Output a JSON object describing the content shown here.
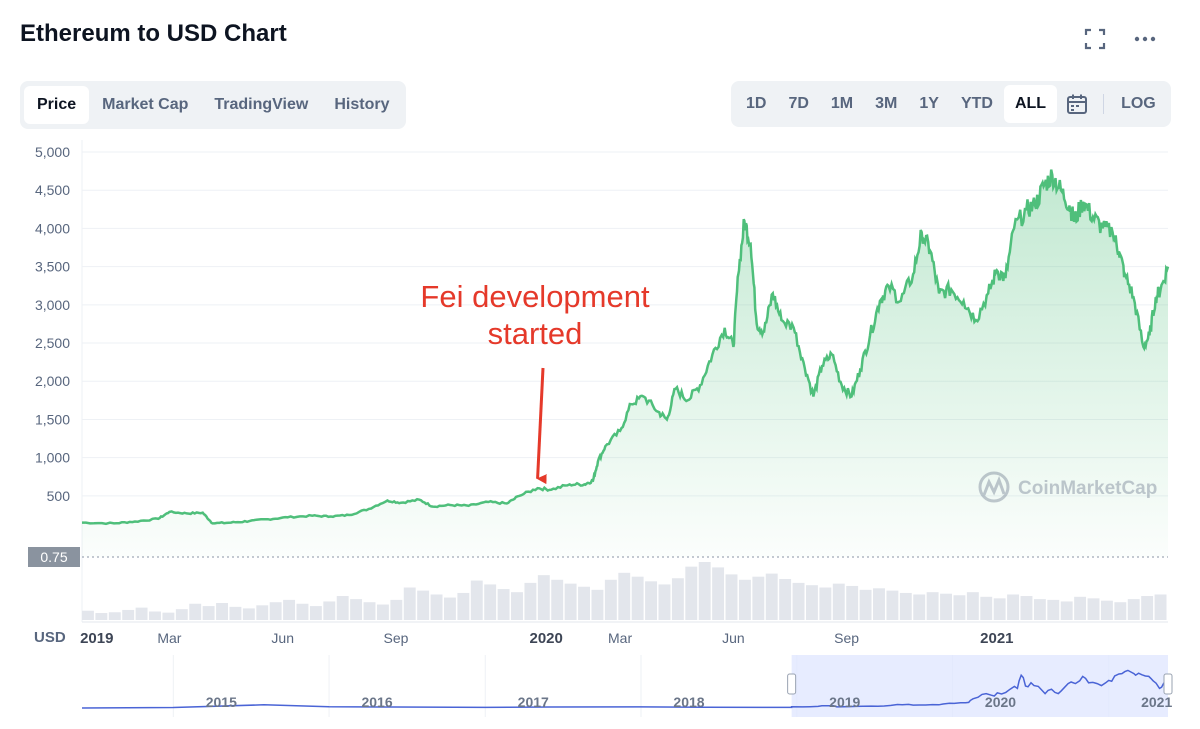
{
  "header": {
    "title": "Ethereum to USD Chart",
    "fullscreen_icon": "fullscreen-icon",
    "more_icon": "more-dots-icon"
  },
  "tabs": [
    {
      "label": "Price",
      "active": true
    },
    {
      "label": "Market Cap",
      "active": false
    },
    {
      "label": "TradingView",
      "active": false
    },
    {
      "label": "History",
      "active": false
    }
  ],
  "ranges": [
    {
      "label": "1D",
      "active": false
    },
    {
      "label": "7D",
      "active": false
    },
    {
      "label": "1M",
      "active": false
    },
    {
      "label": "3M",
      "active": false
    },
    {
      "label": "1Y",
      "active": false
    },
    {
      "label": "YTD",
      "active": false
    },
    {
      "label": "ALL",
      "active": true
    }
  ],
  "calendar_icon": "calendar-icon",
  "log_label": "LOG",
  "chart_data": {
    "type": "area",
    "title": "",
    "xlabel": "",
    "ylabel": "",
    "y_ticks": [
      5000,
      4500,
      4000,
      3500,
      3000,
      2500,
      2000,
      1500,
      1000,
      500
    ],
    "y_tick_labels": [
      "5,000",
      "4,500",
      "4,000",
      "3,500",
      "3,000",
      "2,500",
      "2,000",
      "1,500",
      "1,000",
      "500"
    ],
    "ylim": [
      -300,
      5000
    ],
    "x_ticks": [
      {
        "label": "2019",
        "date": "2019-01-01",
        "bold": true
      },
      {
        "label": "Mar",
        "date": "2019-03-01",
        "bold": false
      },
      {
        "label": "Jun",
        "date": "2019-06-01",
        "bold": false
      },
      {
        "label": "Sep",
        "date": "2019-09-01",
        "bold": false
      },
      {
        "label": "2020",
        "date": "2020-01-01",
        "bold": true
      },
      {
        "label": "Mar",
        "date": "2020-03-01",
        "bold": false
      },
      {
        "label": "Jun",
        "date": "2020-06-01",
        "bold": false
      },
      {
        "label": "Sep",
        "date": "2020-09-01",
        "bold": false
      },
      {
        "label": "2021",
        "date": "2021-01-01",
        "bold": true
      }
    ],
    "xlim": [
      "2018-12-20",
      "2021-05-20"
    ],
    "currency_label": "USD",
    "marker_label": "0.75",
    "marker_value": 0.75,
    "line_color": "#4fbf7b",
    "series": [
      {
        "values": [
          [
            "2018-12-20",
            150
          ],
          [
            "2019-01-15",
            140
          ],
          [
            "2019-02-01",
            165
          ],
          [
            "2019-02-20",
            200
          ],
          [
            "2019-03-01",
            290
          ],
          [
            "2019-03-15",
            270
          ],
          [
            "2019-03-28",
            280
          ],
          [
            "2019-04-05",
            140
          ],
          [
            "2019-04-20",
            150
          ],
          [
            "2019-05-05",
            170
          ],
          [
            "2019-05-20",
            195
          ],
          [
            "2019-06-05",
            220
          ],
          [
            "2019-06-25",
            240
          ],
          [
            "2019-07-10",
            230
          ],
          [
            "2019-07-25",
            250
          ],
          [
            "2019-08-10",
            330
          ],
          [
            "2019-08-25",
            440
          ],
          [
            "2019-09-05",
            410
          ],
          [
            "2019-09-20",
            450
          ],
          [
            "2019-10-01",
            360
          ],
          [
            "2019-10-15",
            380
          ],
          [
            "2019-10-30",
            370
          ],
          [
            "2019-11-15",
            420
          ],
          [
            "2019-11-30",
            400
          ],
          [
            "2019-12-10",
            500
          ],
          [
            "2019-12-25",
            600
          ],
          [
            "2020-01-05",
            580
          ],
          [
            "2020-01-20",
            650
          ],
          [
            "2020-02-01",
            650
          ],
          [
            "2020-02-08",
            700
          ],
          [
            "2020-02-12",
            950
          ],
          [
            "2020-02-18",
            1150
          ],
          [
            "2020-03-01",
            1350
          ],
          [
            "2020-03-10",
            1700
          ],
          [
            "2020-03-20",
            1800
          ],
          [
            "2020-04-01",
            1600
          ],
          [
            "2020-04-08",
            1500
          ],
          [
            "2020-04-15",
            1900
          ],
          [
            "2020-04-25",
            1750
          ],
          [
            "2020-05-05",
            1950
          ],
          [
            "2020-05-15",
            2350
          ],
          [
            "2020-05-25",
            2700
          ],
          [
            "2020-06-01",
            2450
          ],
          [
            "2020-06-05",
            3400
          ],
          [
            "2020-06-10",
            4100
          ],
          [
            "2020-06-15",
            3800
          ],
          [
            "2020-06-20",
            2750
          ],
          [
            "2020-06-26",
            2650
          ],
          [
            "2020-07-03",
            3150
          ],
          [
            "2020-07-10",
            2800
          ],
          [
            "2020-07-20",
            2700
          ],
          [
            "2020-07-28",
            2250
          ],
          [
            "2020-08-05",
            1800
          ],
          [
            "2020-08-12",
            2200
          ],
          [
            "2020-08-20",
            2350
          ],
          [
            "2020-08-28",
            1950
          ],
          [
            "2020-09-05",
            1800
          ],
          [
            "2020-09-12",
            2150
          ],
          [
            "2020-09-20",
            2600
          ],
          [
            "2020-09-28",
            3050
          ],
          [
            "2020-10-05",
            3250
          ],
          [
            "2020-10-15",
            3050
          ],
          [
            "2020-10-25",
            3400
          ],
          [
            "2020-11-01",
            3950
          ],
          [
            "2020-11-08",
            3700
          ],
          [
            "2020-11-15",
            3150
          ],
          [
            "2020-11-25",
            3200
          ],
          [
            "2020-12-05",
            3050
          ],
          [
            "2020-12-15",
            2800
          ],
          [
            "2020-12-25",
            3150
          ],
          [
            "2021-01-01",
            3450
          ],
          [
            "2021-01-08",
            3350
          ],
          [
            "2021-01-15",
            4000
          ],
          [
            "2021-01-25",
            4250
          ],
          [
            "2021-02-01",
            4300
          ],
          [
            "2021-02-08",
            4550
          ],
          [
            "2021-02-15",
            4700
          ],
          [
            "2021-02-22",
            4500
          ],
          [
            "2021-03-01",
            4300
          ],
          [
            "2021-03-05",
            4100
          ],
          [
            "2021-03-12",
            4350
          ],
          [
            "2021-03-20",
            4150
          ],
          [
            "2021-03-28",
            4000
          ],
          [
            "2021-04-05",
            3950
          ],
          [
            "2021-04-10",
            3700
          ],
          [
            "2021-04-15",
            3400
          ],
          [
            "2021-04-22",
            3100
          ],
          [
            "2021-04-30",
            2450
          ],
          [
            "2021-05-05",
            2600
          ],
          [
            "2021-05-10",
            3100
          ],
          [
            "2021-05-14",
            3200
          ],
          [
            "2021-05-20",
            3500
          ]
        ]
      }
    ],
    "volume": [
      120,
      90,
      100,
      130,
      160,
      110,
      95,
      140,
      210,
      180,
      220,
      170,
      150,
      190,
      230,
      260,
      210,
      180,
      240,
      310,
      270,
      230,
      200,
      260,
      420,
      380,
      330,
      290,
      350,
      510,
      460,
      400,
      360,
      480,
      580,
      520,
      470,
      430,
      390,
      520,
      610,
      560,
      500,
      460,
      540,
      690,
      750,
      680,
      590,
      520,
      560,
      600,
      530,
      480,
      450,
      420,
      470,
      440,
      390,
      410,
      380,
      350,
      330,
      360,
      340,
      320,
      360,
      300,
      280,
      330,
      310,
      270,
      260,
      240,
      300,
      280,
      250,
      230,
      270,
      310,
      330
    ],
    "annotation": {
      "lines": [
        "Fei development",
        "started"
      ],
      "color": "#e5392a",
      "date": "2019-12-25",
      "value": 620
    },
    "watermark": "CoinMarketCap",
    "navigator": {
      "year_labels": [
        "2015",
        "2016",
        "2017",
        "2018",
        "2019",
        "2020",
        "2021"
      ],
      "year_dates": [
        "2015-01-01",
        "2016-01-01",
        "2017-01-01",
        "2018-01-01",
        "2019-01-01",
        "2020-01-01",
        "2021-01-01"
      ],
      "selection": [
        "2018-12-20",
        "2021-05-20"
      ]
    }
  }
}
